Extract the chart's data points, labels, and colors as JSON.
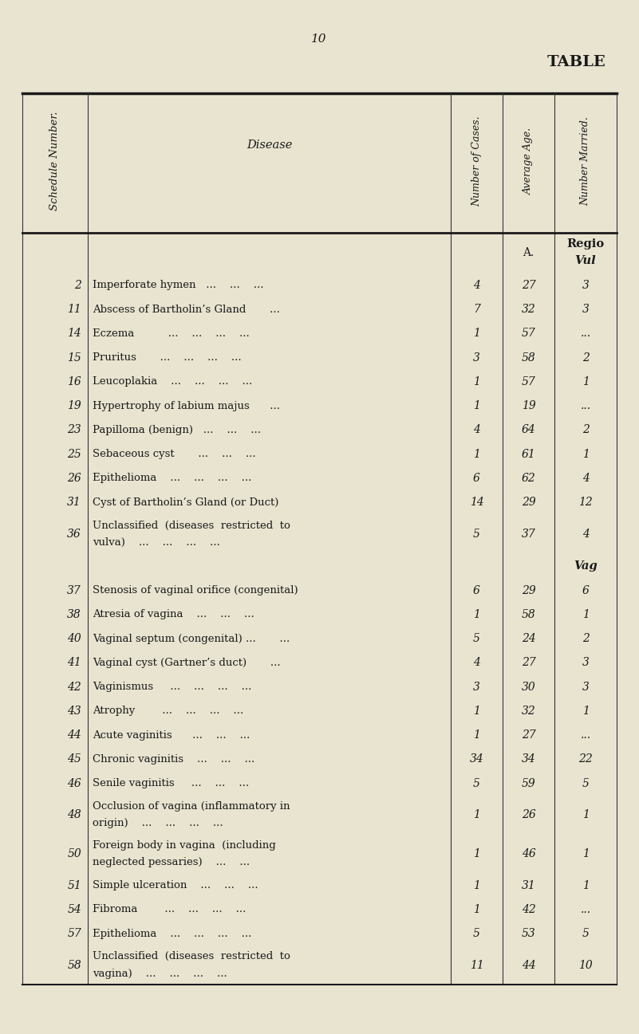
{
  "page_number": "10",
  "table_title": "TABLE",
  "background_color": "#e8e4d0",
  "col_headers": [
    "Schedule Number.",
    "Disease",
    "Number of Cases.",
    "Average Age.",
    "Number Married."
  ],
  "region_headers": [
    {
      "label": "A.",
      "col": 3,
      "row_before": 0
    },
    {
      "label": "REGIO\nVul",
      "col": 4,
      "row_before": 0
    }
  ],
  "section_labels": [
    {
      "label": "Vag",
      "col": 4,
      "after_row": 14
    }
  ],
  "rows": [
    {
      "sched": "2",
      "disease": "Imperforate hymen   ...    ...    ...",
      "cases": "4",
      "age": "27",
      "married": "3"
    },
    {
      "sched": "11",
      "disease": "Abscess of Bartholin’s Gland       ...",
      "cases": "7",
      "age": "32",
      "married": "3"
    },
    {
      "sched": "14",
      "disease": "Eczema          ...    ...    ...    ...",
      "cases": "1",
      "age": "57",
      "married": "..."
    },
    {
      "sched": "15",
      "disease": "Pruritus       ...    ...    ...    ...",
      "cases": "3",
      "age": "58",
      "married": "2"
    },
    {
      "sched": "16",
      "disease": "Leucoplakia    ...    ...    ...    ...",
      "cases": "1",
      "age": "57",
      "married": "1"
    },
    {
      "sched": "19",
      "disease": "Hypertrophy of labium majus      ...",
      "cases": "1",
      "age": "19",
      "married": "..."
    },
    {
      "sched": "23",
      "disease": "Papilloma (benign)   ...    ...    ...",
      "cases": "4",
      "age": "64",
      "married": "2"
    },
    {
      "sched": "25",
      "disease": "Sebaceous cyst       ...    ...    ...",
      "cases": "1",
      "age": "61",
      "married": "1"
    },
    {
      "sched": "26",
      "disease": "Epithelioma    ...    ...    ...    ...",
      "cases": "6",
      "age": "62",
      "married": "4"
    },
    {
      "sched": "31",
      "disease": "Cyst of Bartholin’s Gland (or Duct)",
      "cases": "14",
      "age": "29",
      "married": "12"
    },
    {
      "sched": "36",
      "disease": "Unclassified  (diseases  restricted  to\n        vulva)    ...    ...    ...    ...",
      "cases": "5",
      "age": "37",
      "married": "4"
    },
    {
      "sched": "",
      "disease": "",
      "cases": "",
      "age": "",
      "married": ""
    },
    {
      "sched": "37",
      "disease": "Stenosis of vaginal orifice (congenital)",
      "cases": "6",
      "age": "29",
      "married": "6"
    },
    {
      "sched": "38",
      "disease": "Atresia of vagina    ...    ...    ...",
      "cases": "1",
      "age": "58",
      "married": "1"
    },
    {
      "sched": "40",
      "disease": "Vaginal septum (congenital) ...       ...",
      "cases": "5",
      "age": "24",
      "married": "2"
    },
    {
      "sched": "41",
      "disease": "Vaginal cyst (Gartner’s duct)       ...",
      "cases": "4",
      "age": "27",
      "married": "3"
    },
    {
      "sched": "42",
      "disease": "Vaginismus     ...    ...    ...    ...",
      "cases": "3",
      "age": "30",
      "married": "3"
    },
    {
      "sched": "43",
      "disease": "Atrophy        ...    ...    ...    ...",
      "cases": "1",
      "age": "32",
      "married": "1"
    },
    {
      "sched": "44",
      "disease": "Acute vaginitis      ...    ...    ...",
      "cases": "1",
      "age": "27",
      "married": "..."
    },
    {
      "sched": "45",
      "disease": "Chronic vaginitis    ...    ...    ...",
      "cases": "34",
      "age": "34",
      "married": "22"
    },
    {
      "sched": "46",
      "disease": "Senile vaginitis     ...    ...    ...",
      "cases": "5",
      "age": "59",
      "married": "5"
    },
    {
      "sched": "48",
      "disease": "Occlusion of vagina (inflammatory in\n        origin)    ...    ...    ...    ...",
      "cases": "1",
      "age": "26",
      "married": "1"
    },
    {
      "sched": "50",
      "disease": "Foreign body in vagina  (including\n        neglected pessaries)    ...    ...",
      "cases": "1",
      "age": "46",
      "married": "1"
    },
    {
      "sched": "51",
      "disease": "Simple ulceration    ...    ...    ...",
      "cases": "1",
      "age": "31",
      "married": "1"
    },
    {
      "sched": "54",
      "disease": "Fibroma        ...    ...    ...    ...",
      "cases": "1",
      "age": "42",
      "married": "..."
    },
    {
      "sched": "57",
      "disease": "Epithelioma    ...    ...    ...    ...",
      "cases": "5",
      "age": "53",
      "married": "5"
    },
    {
      "sched": "58",
      "disease": "Unclassified  (diseases  restricted  to\n        vagina)    ...    ...    ...    ...",
      "cases": "11",
      "age": "44",
      "married": "10"
    }
  ]
}
